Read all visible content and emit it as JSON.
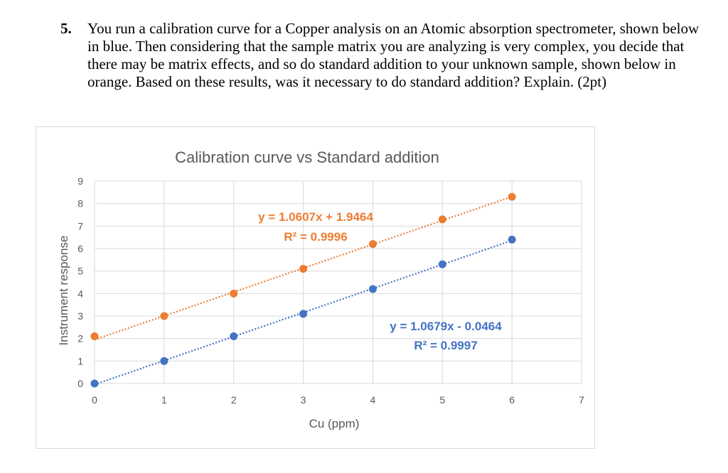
{
  "question": {
    "number": "5.",
    "text": "You run a calibration curve for a Copper analysis on an Atomic absorption spectrometer, shown below in blue.  Then considering that the sample matrix you are analyzing is very complex, you decide that there may be matrix effects, and so do standard addition to your unknown sample, shown below in orange.  Based on these results, was it necessary to do standard addition? Explain. (2pt)"
  },
  "chart_data": {
    "type": "scatter",
    "title": "Calibration curve vs Standard addition",
    "xlabel": "Cu (ppm)",
    "ylabel": "Instrument response",
    "xlim": [
      0,
      7
    ],
    "ylim": [
      0,
      9
    ],
    "x_ticks": [
      "0",
      "1",
      "2",
      "3",
      "4",
      "5",
      "6",
      "7"
    ],
    "y_ticks": [
      "0",
      "1",
      "2",
      "3",
      "4",
      "5",
      "6",
      "7",
      "8",
      "9"
    ],
    "grid": true,
    "series": [
      {
        "color": "#4472c4",
        "x": [
          0,
          1,
          2,
          3,
          4,
          5,
          6
        ],
        "y": [
          0.0,
          1.0,
          2.1,
          3.1,
          4.2,
          5.3,
          6.4
        ],
        "trendline": {
          "slope": 1.0679,
          "intercept": -0.0464
        },
        "equation": "y = 1.0679x - 0.0464",
        "r2": "R² = 0.9997"
      },
      {
        "color": "#ed7d31",
        "x": [
          0,
          1,
          2,
          3,
          4,
          5,
          6
        ],
        "y": [
          2.1,
          3.0,
          4.0,
          5.1,
          6.2,
          7.3,
          8.3
        ],
        "trendline": {
          "slope": 1.0607,
          "intercept": 1.9464
        },
        "equation": "y = 1.0607x + 1.9464",
        "r2": "R² = 0.9996"
      }
    ]
  }
}
